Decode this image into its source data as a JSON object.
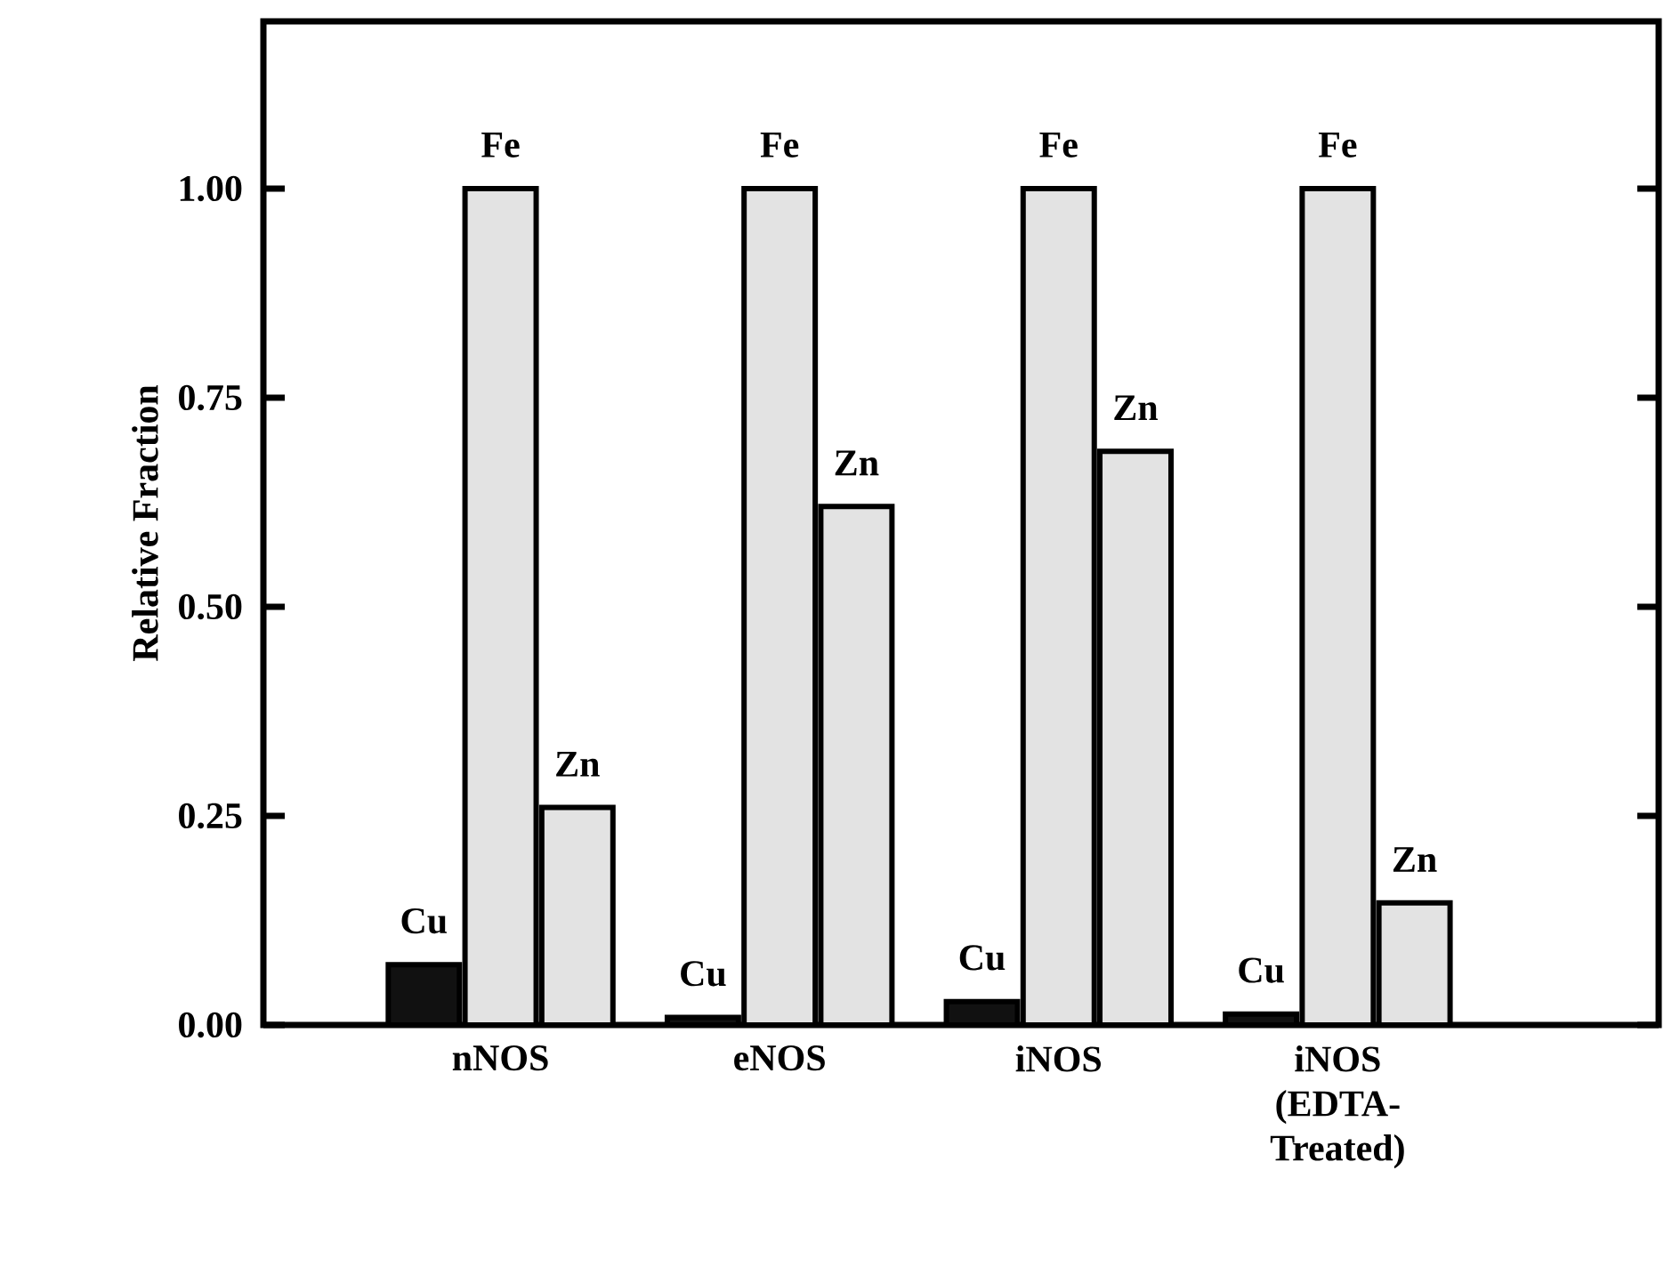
{
  "chart_data": {
    "type": "bar",
    "ylabel": "Relative Fraction",
    "categories": [
      "nNOS",
      "eNOS",
      "iNOS",
      "iNOS (EDTA-Treated)"
    ],
    "series": [
      {
        "name": "Cu",
        "color": "#111111",
        "values": [
          0.072,
          0.009,
          0.028,
          0.013
        ]
      },
      {
        "name": "Fe",
        "color": "#e3e3e3",
        "values": [
          1.0,
          1.0,
          1.0,
          1.0
        ]
      },
      {
        "name": "Zn",
        "color": "#e3e3e3",
        "values": [
          0.26,
          0.62,
          0.686,
          0.146
        ]
      }
    ],
    "ylim": [
      0,
      1.2
    ],
    "yticks": [
      {
        "value": 0,
        "label": "0.00"
      },
      {
        "value": 0.25,
        "label": "0.25"
      },
      {
        "value": 0.5,
        "label": "0.50"
      },
      {
        "value": 0.75,
        "label": "0.75"
      },
      {
        "value": 1,
        "label": "1.00"
      }
    ],
    "grid": false
  }
}
